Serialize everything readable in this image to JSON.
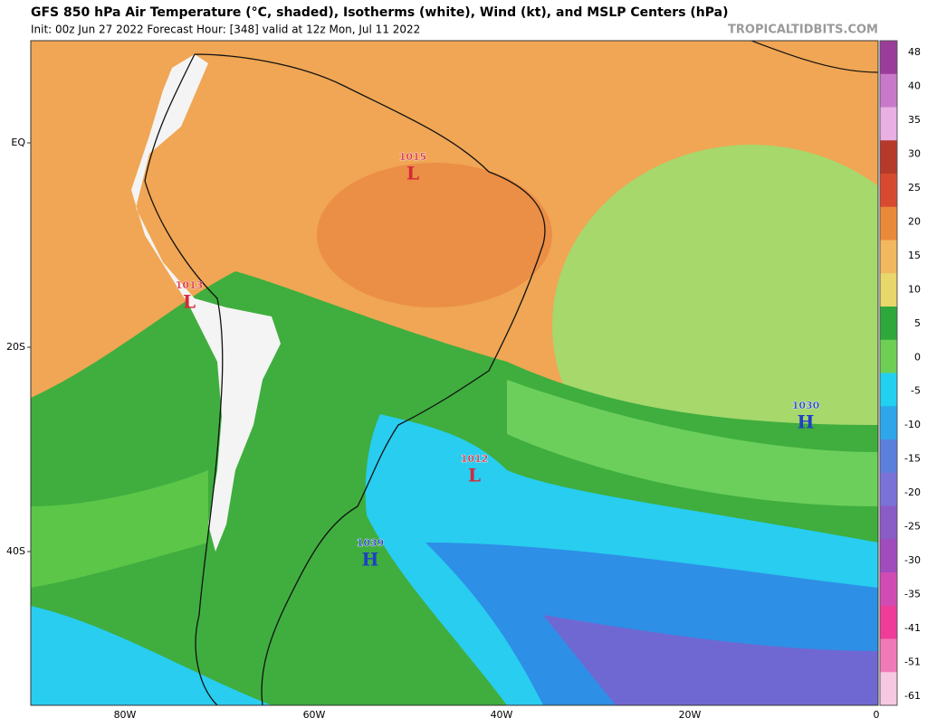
{
  "header": {
    "title": "GFS 850 hPa Air Temperature (°C, shaded), Isotherms (white), Wind (kt), and MSLP Centers (hPa)",
    "subtitle": "Init: 00z Jun 27 2022   Forecast Hour: [348]   valid at 12z Mon, Jul 11 2022",
    "credit": "TROPICALTIDBITS.COM"
  },
  "map": {
    "lat_labels": [
      "EQ",
      "20S",
      "40S"
    ],
    "lon_labels": [
      "80W",
      "60W",
      "40W",
      "20W",
      "0"
    ],
    "centers": [
      {
        "value": 1015,
        "symbol": "L",
        "color": "#d42a3a"
      },
      {
        "value": 1013,
        "symbol": "L",
        "color": "#d42a3a"
      },
      {
        "value": 1012,
        "symbol": "L",
        "color": "#d42a3a"
      },
      {
        "value": 1039,
        "symbol": "H",
        "color": "#1f3fc4"
      },
      {
        "value": 1030,
        "symbol": "H",
        "color": "#1f3fc4"
      }
    ]
  },
  "colorbar": {
    "labels": [
      48,
      40,
      35,
      30,
      25,
      20,
      15,
      10,
      5,
      0,
      -5,
      -10,
      -15,
      -20,
      -25,
      -30,
      -35,
      -41,
      -51,
      -61
    ],
    "colors": [
      "#9a3c9a",
      "#c979c9",
      "#e9b0e4",
      "#b53a2a",
      "#d84a30",
      "#e98a3a",
      "#f2b860",
      "#e8d76a",
      "#2ea83a",
      "#6fcf55",
      "#22d0f0",
      "#2ea6ea",
      "#5a80dc",
      "#7a72d6",
      "#8a5cc6",
      "#a04cbc",
      "#d04cb4",
      "#ee3c98",
      "#f07ab8",
      "#f6c8e2"
    ]
  }
}
